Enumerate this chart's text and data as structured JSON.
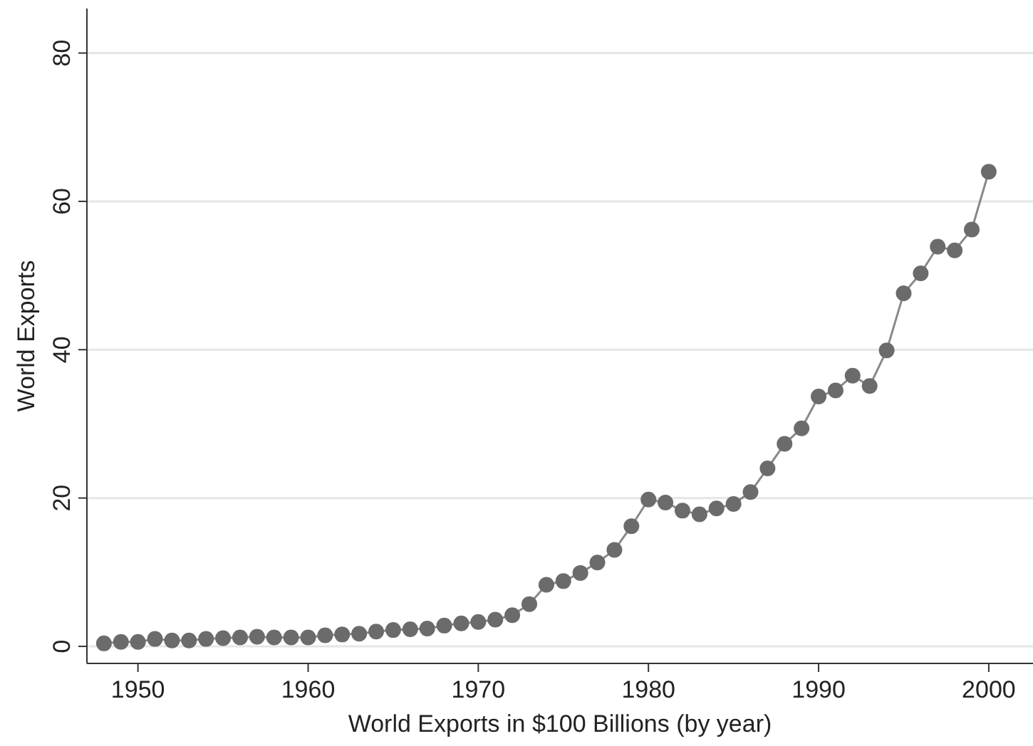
{
  "chart_data": {
    "type": "line",
    "xlabel": "World Exports in $100 Billions (by year)",
    "ylabel": "World Exports",
    "x": [
      1948,
      1949,
      1950,
      1951,
      1952,
      1953,
      1954,
      1955,
      1956,
      1957,
      1958,
      1959,
      1960,
      1961,
      1962,
      1963,
      1964,
      1965,
      1966,
      1967,
      1968,
      1969,
      1970,
      1971,
      1972,
      1973,
      1974,
      1975,
      1976,
      1977,
      1978,
      1979,
      1980,
      1981,
      1982,
      1983,
      1984,
      1985,
      1986,
      1987,
      1988,
      1989,
      1990,
      1991,
      1992,
      1993,
      1994,
      1995,
      1996,
      1997,
      1998,
      1999,
      2000
    ],
    "series": [
      {
        "color": "#6b6b6b",
        "values": [
          0.4,
          0.6,
          0.6,
          1.0,
          0.8,
          0.8,
          1.0,
          1.1,
          1.2,
          1.3,
          1.2,
          1.2,
          1.2,
          1.5,
          1.6,
          1.7,
          2.0,
          2.2,
          2.3,
          2.4,
          2.8,
          3.1,
          3.3,
          3.6,
          4.2,
          5.7,
          8.3,
          8.8,
          9.9,
          11.3,
          13.0,
          16.2,
          19.8,
          19.4,
          18.3,
          17.8,
          18.6,
          19.2,
          20.8,
          24.0,
          27.3,
          29.4,
          33.7,
          34.5,
          36.5,
          35.1,
          39.9,
          47.6,
          50.3,
          53.9,
          53.4,
          56.2,
          64.0
        ]
      }
    ],
    "xlim": [
      1947,
      2002.6
    ],
    "ylim": [
      -2.3,
      86
    ],
    "xticks": [
      1950,
      1960,
      1970,
      1980,
      1990,
      2000
    ],
    "yticks": [
      0,
      20,
      40,
      60,
      80
    ],
    "grid": "y",
    "marker": "circle",
    "line_style": "solid"
  }
}
